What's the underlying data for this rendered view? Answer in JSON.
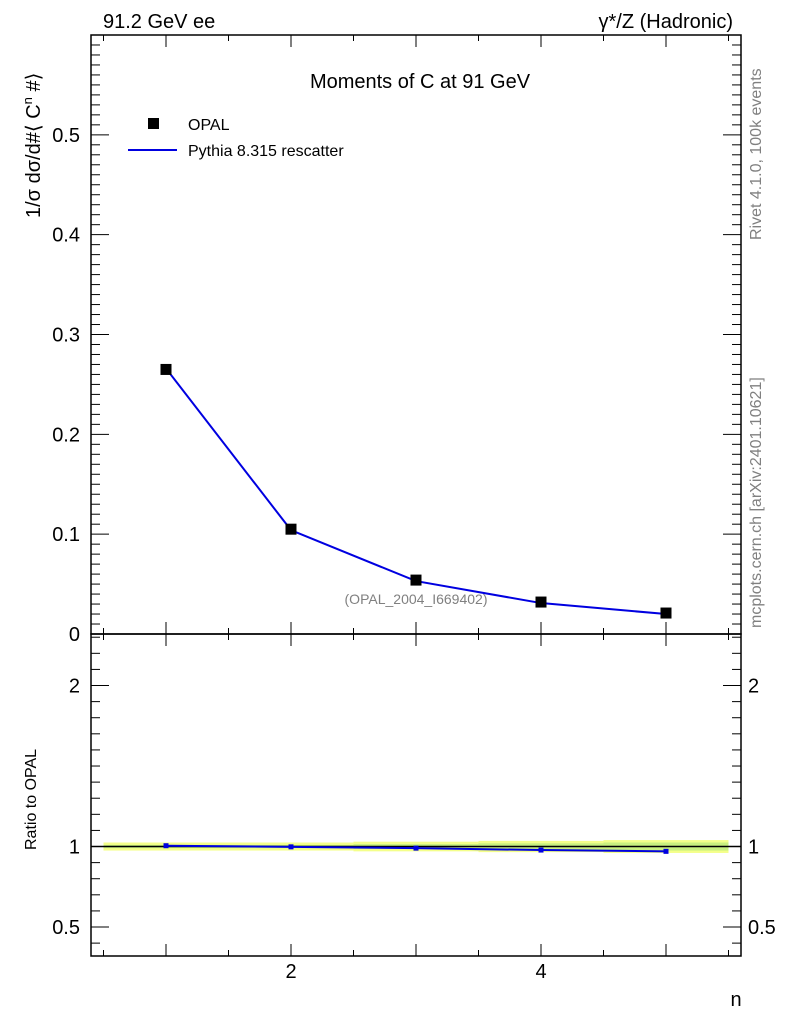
{
  "header": {
    "left": "91.2 GeV ee",
    "right": "γ*/Z (Hadronic)"
  },
  "side_labels": {
    "rivet": "Rivet 4.1.0,  100k events",
    "mcplots": "mcplots.cern.ch [arXiv:2401.10621]"
  },
  "colors": {
    "mc_line": "#0000e0",
    "band_outer": "#f4ff8a",
    "band_inner": "#c8f080",
    "data_marker": "#000000"
  },
  "chart_data": [
    {
      "type": "line",
      "title": "Moments of C at 91 GeV",
      "ylabel_text": "1/σ  dσ/d#⟨ C",
      "ylabel_sup": "n",
      "ylabel_end": " #⟩",
      "analysis_id": "(OPAL_2004_I669402)",
      "xlim": [
        0.4,
        5.6
      ],
      "ylim": [
        0,
        0.6
      ],
      "yticks": [
        0,
        0.1,
        0.2,
        0.3,
        0.4,
        0.5
      ],
      "ytick_labels": [
        "0",
        "0.1",
        "0.2",
        "0.3",
        "0.4",
        "0.5"
      ],
      "legend_position": "top-left",
      "series": [
        {
          "name": "OPAL",
          "kind": "data",
          "x": [
            1,
            2,
            3,
            4,
            5
          ],
          "y": [
            0.265,
            0.105,
            0.054,
            0.032,
            0.021
          ]
        },
        {
          "name": "Pythia 8.315 rescatter",
          "kind": "mc",
          "x": [
            1,
            2,
            3,
            4,
            5
          ],
          "y": [
            0.266,
            0.104,
            0.053,
            0.031,
            0.02
          ]
        }
      ]
    },
    {
      "type": "line",
      "ylabel": "Ratio to OPAL",
      "xlabel": "n",
      "xlim": [
        0.4,
        5.6
      ],
      "ylim": [
        0.32,
        2.32
      ],
      "yticks": [
        0.5,
        1,
        2
      ],
      "ytick_labels": [
        "0.5",
        "1",
        "2"
      ],
      "xticks": [
        2,
        4
      ],
      "xtick_labels": [
        "2",
        "4"
      ],
      "band": {
        "x": [
          0.5,
          1.5,
          2.5,
          3.5,
          4.5,
          5.5
        ],
        "outer": [
          0.025,
          0.025,
          0.03,
          0.035,
          0.04,
          0.05
        ],
        "inner": [
          0.01,
          0.01,
          0.015,
          0.02,
          0.025,
          0.03
        ]
      },
      "series": [
        {
          "name": "Pythia 8.315 rescatter",
          "x": [
            1,
            2,
            3,
            4,
            5
          ],
          "y": [
            1.005,
            0.998,
            0.99,
            0.978,
            0.97
          ]
        }
      ]
    }
  ]
}
